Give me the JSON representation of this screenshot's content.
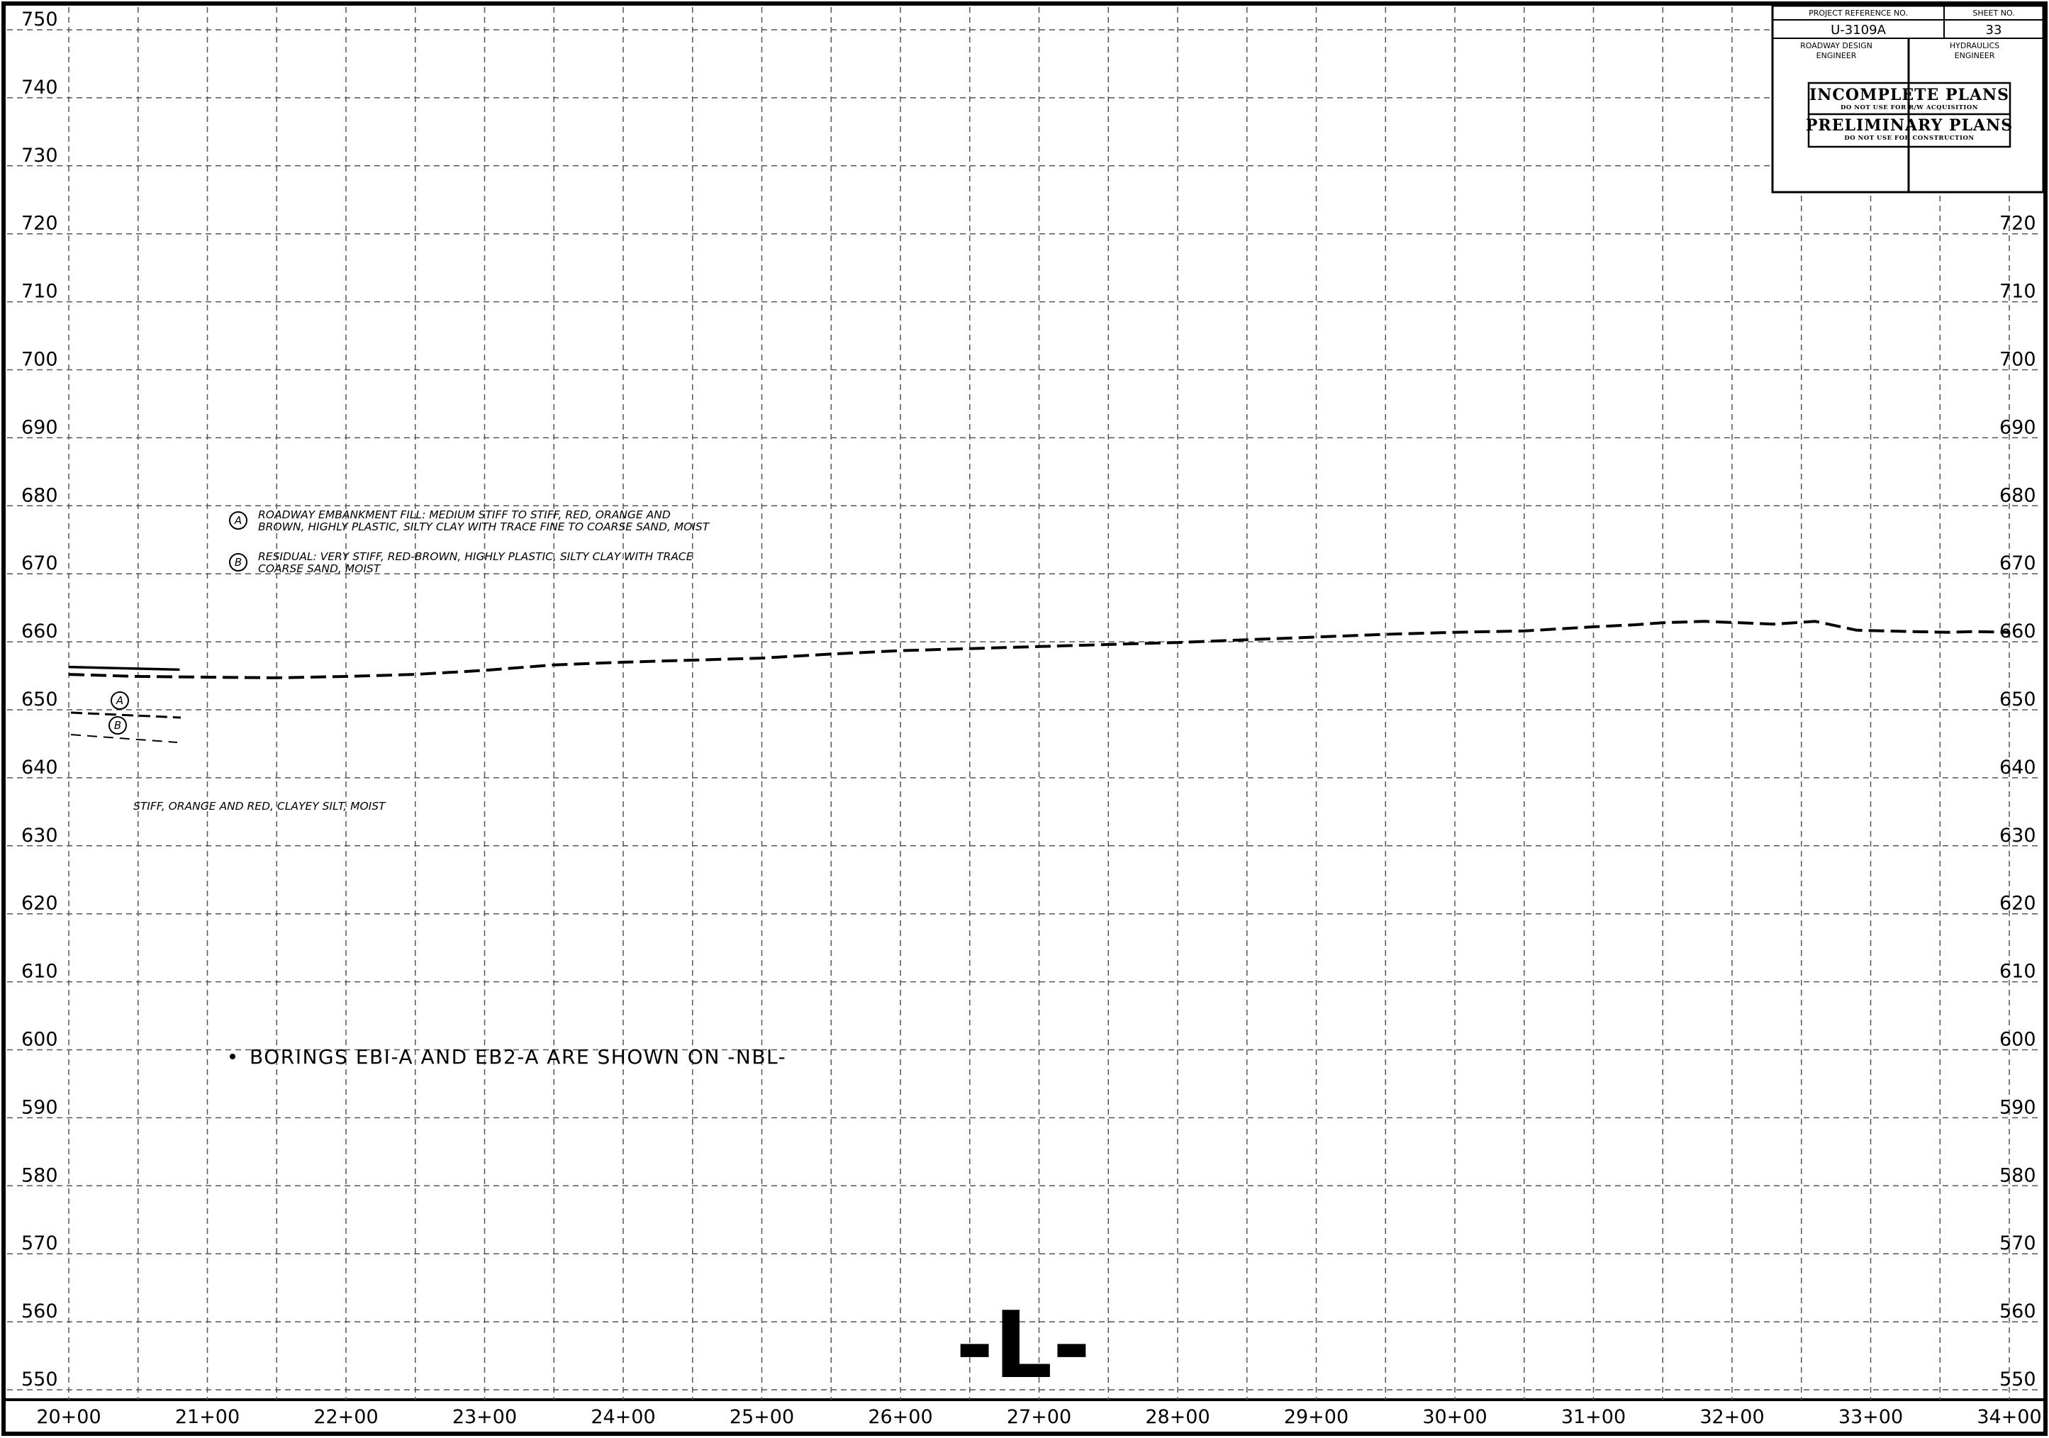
{
  "title_block": {
    "project_reference_label": "PROJECT REFERENCE NO.",
    "sheet_no_label": "SHEET NO.",
    "project_reference": "U-3109A",
    "sheet_no": "33",
    "roadway_label_1": "ROADWAY DESIGN",
    "roadway_label_2": "ENGINEER",
    "hydraulics_label_1": "HYDRAULICS",
    "hydraulics_label_2": "ENGINEER",
    "incomplete_title": "INCOMPLETE PLANS",
    "incomplete_warning": "DO NOT USE FOR R/W ACQUISITION",
    "preliminary_title": "PRELIMINARY PLANS",
    "preliminary_warning": "DO NOT USE FOR CONSTRUCTION"
  },
  "notes": {
    "legend_a_symbol": "A",
    "legend_a_line1": "ROADWAY EMBANKMENT FILL: MEDIUM STIFF TO STIFF, RED, ORANGE AND",
    "legend_a_line2": "BROWN, HIGHLY PLASTIC, SILTY CLAY WITH TRACE FINE TO COARSE SAND, MOIST",
    "legend_b_symbol": "B",
    "legend_b_line1": "RESIDUAL: VERY STIFF, RED-BROWN, HIGHLY PLASTIC, SILTY CLAY WITH TRACE",
    "legend_b_line2": "COARSE SAND, MOIST",
    "stratum_label": "STIFF, ORANGE AND RED, CLAYEY SILT, MOIST",
    "borings_note": "BORINGS EBI-A AND EB2-A ARE SHOWN ON -NBL-",
    "layer_a_symbol": "A",
    "layer_b_symbol": "B"
  },
  "alignment_label": "-L-",
  "chart_data": {
    "type": "line",
    "x_unit": "station (ft)",
    "y_unit": "elevation (ft)",
    "xlim": [
      2000,
      3400
    ],
    "ylim": [
      550,
      750
    ],
    "grid": true,
    "x_ticks": [
      2000,
      2100,
      2200,
      2300,
      2400,
      2500,
      2600,
      2700,
      2800,
      2900,
      3000,
      3100,
      3200,
      3300,
      3400
    ],
    "x_tick_labels": [
      "20+00",
      "21+00",
      "22+00",
      "23+00",
      "24+00",
      "25+00",
      "26+00",
      "27+00",
      "28+00",
      "29+00",
      "30+00",
      "31+00",
      "32+00",
      "33+00",
      "34+00"
    ],
    "y_ticks_left": [
      550,
      560,
      570,
      580,
      590,
      600,
      610,
      620,
      630,
      640,
      650,
      660,
      670,
      680,
      690,
      700,
      710,
      720,
      730,
      740,
      750
    ],
    "y_ticks_right": [
      550,
      560,
      570,
      580,
      590,
      600,
      610,
      620,
      630,
      640,
      650,
      660,
      670,
      680,
      690,
      700,
      710,
      720
    ],
    "series": [
      {
        "style": "dashed",
        "points": [
          [
            2000,
            655.2
          ],
          [
            2050,
            654.9
          ],
          [
            2100,
            654.8
          ],
          [
            2150,
            654.7
          ],
          [
            2200,
            654.9
          ],
          [
            2250,
            655.2
          ],
          [
            2300,
            655.8
          ],
          [
            2350,
            656.6
          ],
          [
            2400,
            657.0
          ],
          [
            2450,
            657.3
          ],
          [
            2500,
            657.6
          ],
          [
            2550,
            658.2
          ],
          [
            2600,
            658.7
          ],
          [
            2650,
            659.0
          ],
          [
            2700,
            659.3
          ],
          [
            2750,
            659.6
          ],
          [
            2800,
            659.9
          ],
          [
            2850,
            660.3
          ],
          [
            2900,
            660.7
          ],
          [
            2950,
            661.1
          ],
          [
            3000,
            661.4
          ],
          [
            3050,
            661.6
          ],
          [
            3100,
            662.2
          ],
          [
            3130,
            662.5
          ],
          [
            3150,
            662.8
          ],
          [
            3180,
            663.0
          ],
          [
            3230,
            662.6
          ],
          [
            3260,
            663.0
          ],
          [
            3290,
            661.7
          ],
          [
            3330,
            661.5
          ],
          [
            3356,
            661.4
          ],
          [
            3374,
            661.5
          ],
          [
            3400,
            661.4
          ]
        ]
      },
      {
        "style": "solid",
        "points": [
          [
            2000,
            656.3
          ],
          [
            2080,
            655.9
          ]
        ]
      }
    ]
  }
}
